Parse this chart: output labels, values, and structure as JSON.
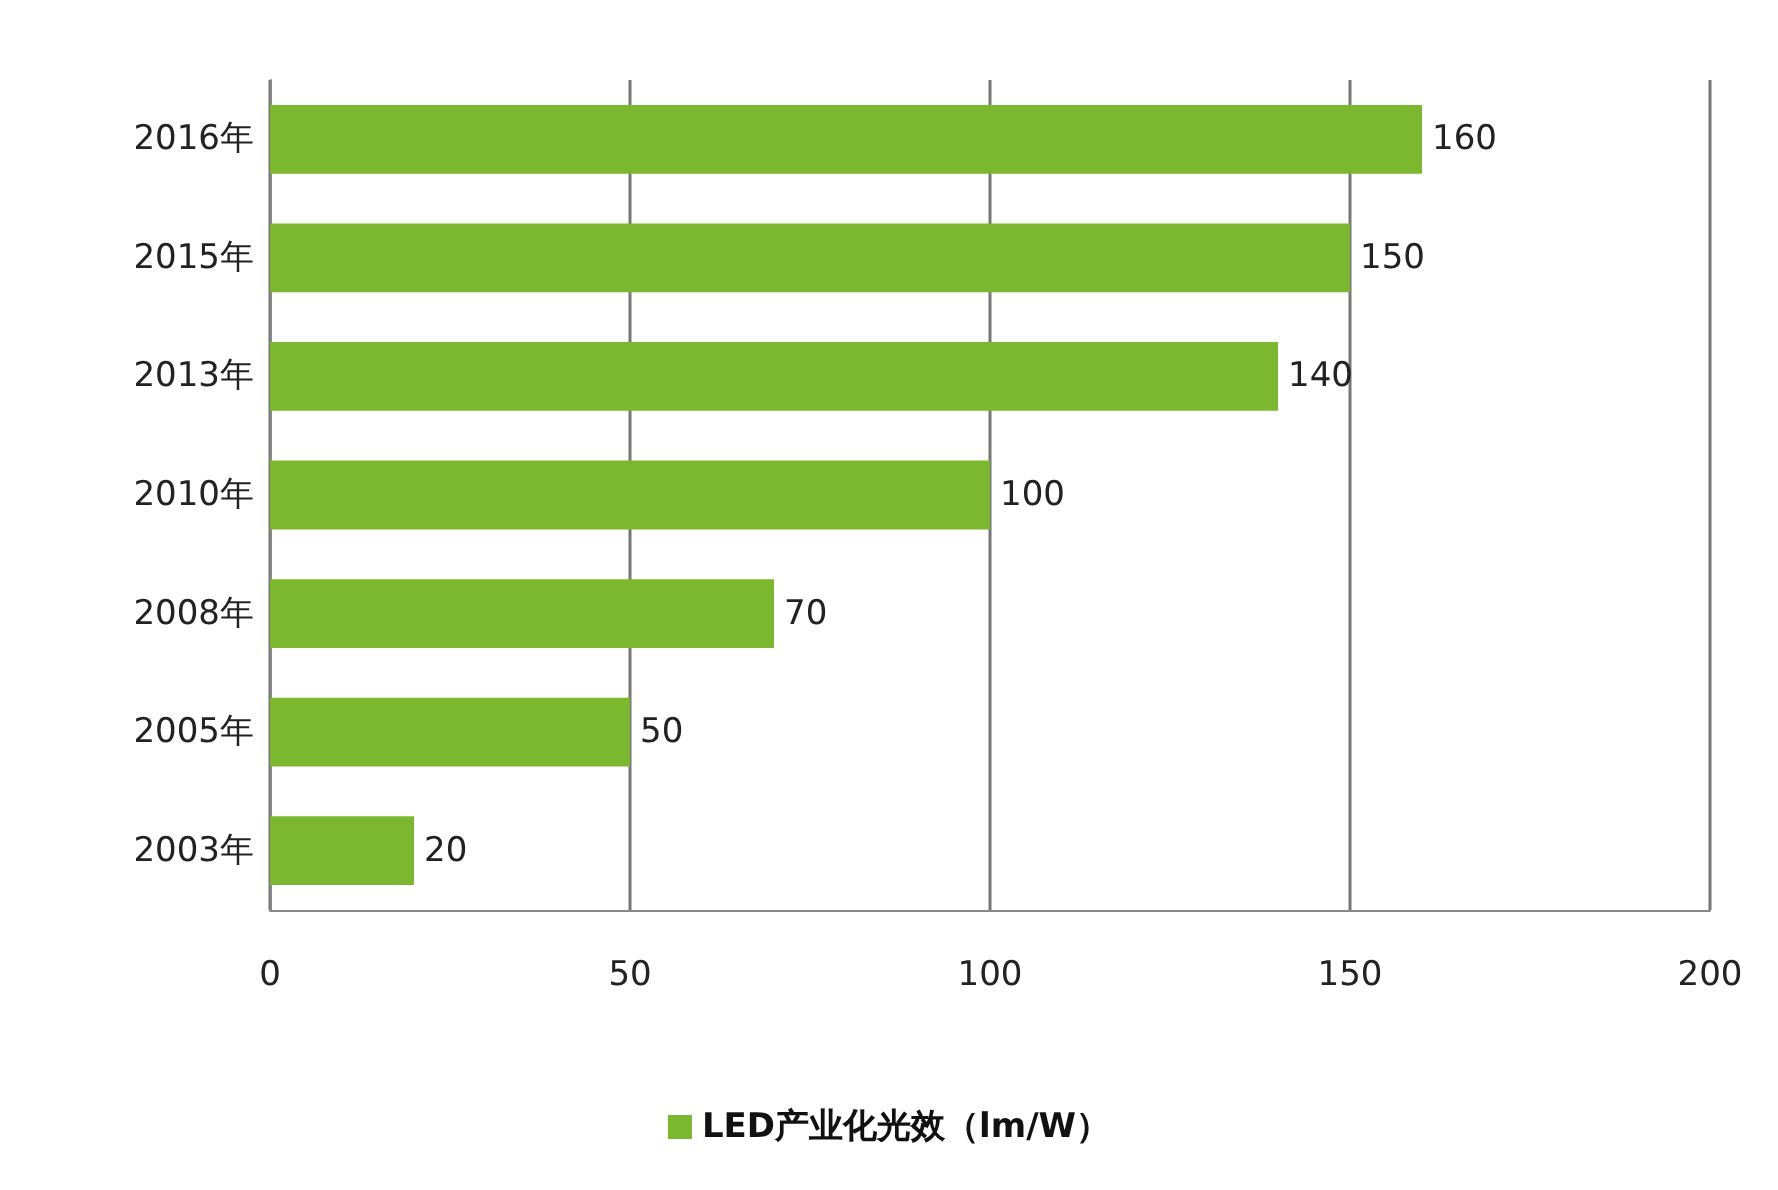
{
  "chart_data": {
    "type": "bar",
    "orientation": "horizontal",
    "categories": [
      "2016年",
      "2015年",
      "2013年",
      "2010年",
      "2008年",
      "2005年",
      "2003年"
    ],
    "series": [
      {
        "name": "LED产业化光效（lm/W）",
        "color": "#7cb82f",
        "values": [
          160,
          150,
          140,
          100,
          70,
          50,
          20
        ]
      }
    ],
    "xlim": [
      0,
      200
    ],
    "xticks": [
      0,
      50,
      100,
      150,
      200
    ],
    "grid": "x",
    "legend": "bottom",
    "data_labels": true
  }
}
